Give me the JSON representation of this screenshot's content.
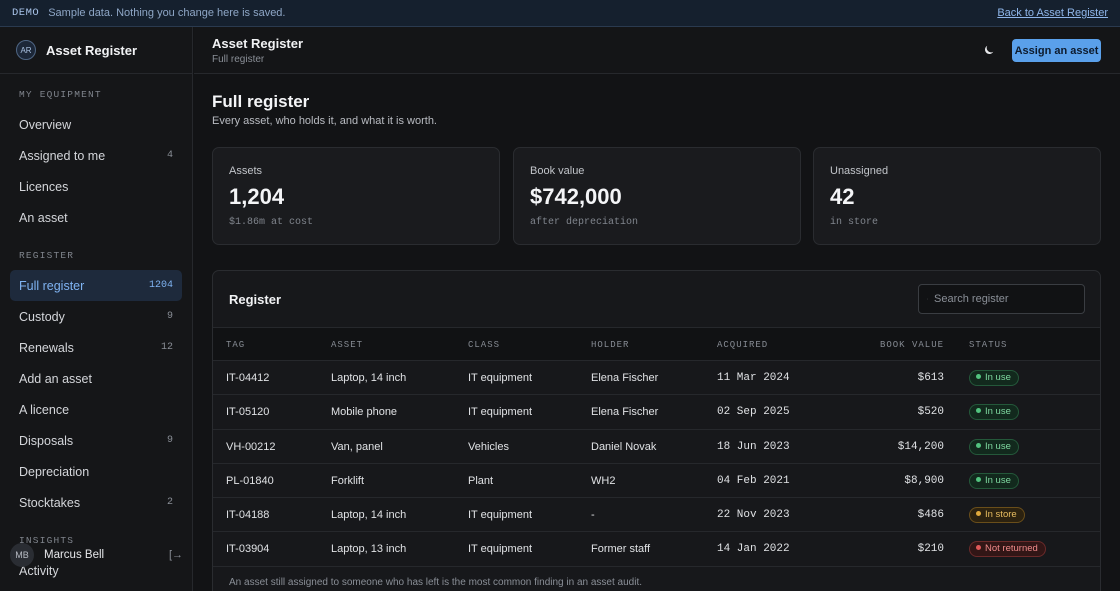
{
  "demo": {
    "tag": "DEMO",
    "message": "Sample data. Nothing you change here is saved.",
    "back_link": "Back to Asset Register"
  },
  "brand": {
    "initials": "AR",
    "name": "Asset Register"
  },
  "sidebar": {
    "sections": [
      {
        "title": "MY EQUIPMENT",
        "items": [
          {
            "label": "Overview",
            "count": ""
          },
          {
            "label": "Assigned to me",
            "count": "4"
          },
          {
            "label": "Licences",
            "count": ""
          },
          {
            "label": "An asset",
            "count": ""
          }
        ]
      },
      {
        "title": "REGISTER",
        "items": [
          {
            "label": "Full register",
            "count": "1204",
            "active": true
          },
          {
            "label": "Custody",
            "count": "9"
          },
          {
            "label": "Renewals",
            "count": "12"
          },
          {
            "label": "Add an asset",
            "count": ""
          },
          {
            "label": "A licence",
            "count": ""
          },
          {
            "label": "Disposals",
            "count": "9"
          },
          {
            "label": "Depreciation",
            "count": ""
          },
          {
            "label": "Stocktakes",
            "count": "2"
          }
        ]
      },
      {
        "title": "INSIGHTS",
        "items": [
          {
            "label": "Activity",
            "count": ""
          }
        ]
      }
    ],
    "user": {
      "initials": "MB",
      "name": "Marcus Bell",
      "action_icon": "sign-out-icon",
      "action_glyph": "[→"
    }
  },
  "topbar": {
    "title": "Asset Register",
    "subtitle": "Full register",
    "theme_icon": "moon-icon",
    "assign_label": "Assign an asset"
  },
  "page": {
    "heading": "Full register",
    "description": "Every asset, who holds it, and what it is worth."
  },
  "stats": [
    {
      "label": "Assets",
      "value": "1,204",
      "note": "$1.86m at cost"
    },
    {
      "label": "Book value",
      "value": "$742,000",
      "note": "after depreciation"
    },
    {
      "label": "Unassigned",
      "value": "42",
      "note": "in store"
    }
  ],
  "register": {
    "title": "Register",
    "search_placeholder": "Search register",
    "columns": [
      "TAG",
      "ASSET",
      "CLASS",
      "HOLDER",
      "ACQUIRED",
      "BOOK VALUE",
      "STATUS"
    ],
    "rows": [
      {
        "tag": "IT-04412",
        "asset": "Laptop, 14 inch",
        "class": "IT equipment",
        "holder": "Elena Fischer",
        "acquired": "11 Mar 2024",
        "book_value": "$613",
        "status": "In use",
        "status_kind": "use"
      },
      {
        "tag": "IT-05120",
        "asset": "Mobile phone",
        "class": "IT equipment",
        "holder": "Elena Fischer",
        "acquired": "02 Sep 2025",
        "book_value": "$520",
        "status": "In use",
        "status_kind": "use"
      },
      {
        "tag": "VH-00212",
        "asset": "Van, panel",
        "class": "Vehicles",
        "holder": "Daniel Novak",
        "acquired": "18 Jun 2023",
        "book_value": "$14,200",
        "status": "In use",
        "status_kind": "use"
      },
      {
        "tag": "PL-01840",
        "asset": "Forklift",
        "class": "Plant",
        "holder": "WH2",
        "acquired": "04 Feb 2021",
        "book_value": "$8,900",
        "status": "In use",
        "status_kind": "use"
      },
      {
        "tag": "IT-04188",
        "asset": "Laptop, 14 inch",
        "class": "IT equipment",
        "holder": "-",
        "acquired": "22 Nov 2023",
        "book_value": "$486",
        "status": "In store",
        "status_kind": "store"
      },
      {
        "tag": "IT-03904",
        "asset": "Laptop, 13 inch",
        "class": "IT equipment",
        "holder": "Former staff",
        "acquired": "14 Jan 2022",
        "book_value": "$210",
        "status": "Not returned",
        "status_kind": "out"
      }
    ],
    "footnote": "An asset still assigned to someone who has left is the most common finding in an asset audit."
  },
  "colors": {
    "accent": "#5aa0ea",
    "in_use": "#52c47f",
    "in_store": "#e0a93c",
    "not_returned": "#e05858"
  }
}
